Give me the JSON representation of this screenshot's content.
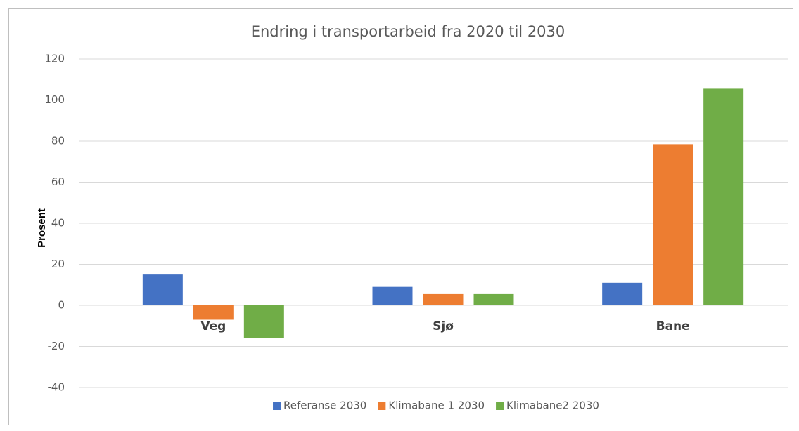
{
  "chart_data": {
    "type": "bar",
    "title": "Endring i transportarbeid fra 2020 til 2030",
    "y_label": "Prosent",
    "categories": [
      "Veg",
      "Sjø",
      "Bane"
    ],
    "series": [
      {
        "name": "Referanse 2030",
        "color": "#4472c4",
        "values": [
          15,
          9,
          11
        ]
      },
      {
        "name": "Klimabane 1 2030",
        "color": "#ed7d31",
        "values": [
          -7,
          5.5,
          78.5
        ]
      },
      {
        "name": "Klimabane2 2030",
        "color": "#70ad47",
        "values": [
          -16,
          5.5,
          105.5
        ]
      }
    ],
    "ylim": [
      -40,
      120
    ],
    "yticks": [
      -40,
      -20,
      0,
      20,
      40,
      60,
      80,
      100,
      120
    ],
    "grid": true,
    "legend": "bottom"
  }
}
